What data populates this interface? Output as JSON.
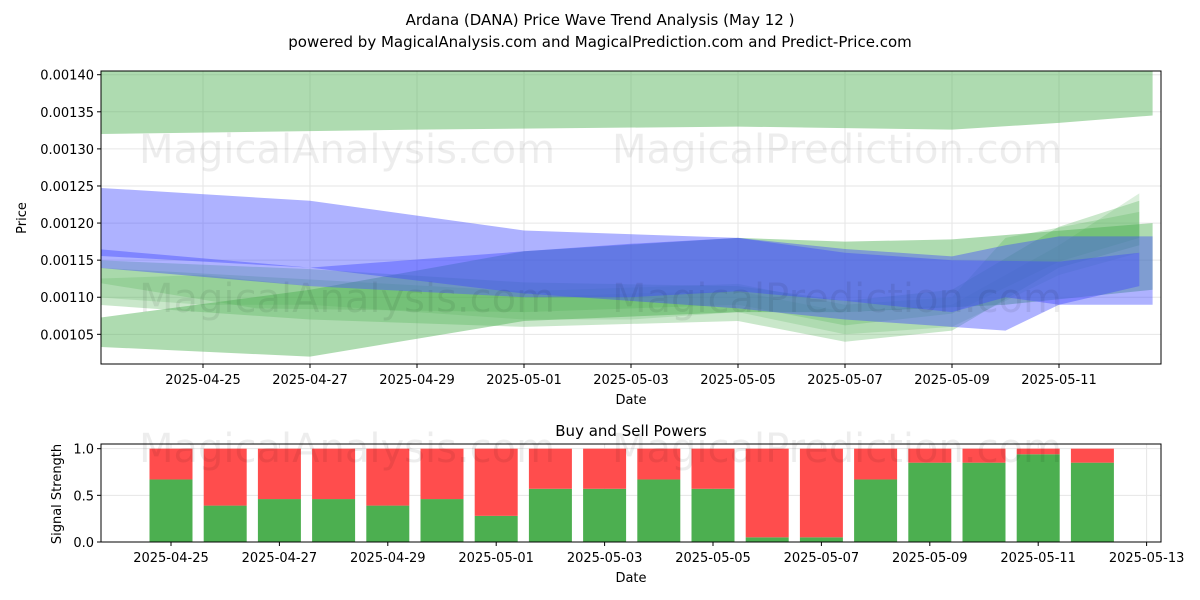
{
  "title_line1": "Ardana (DANA) Price Wave Trend Analysis (May 12 )",
  "title_line2": "powered by MagicalAnalysis.com and MagicalPrediction.com and Predict-Price.com",
  "watermarks": [
    "MagicalAnalysis.com",
    "MagicalPrediction.com"
  ],
  "colors": {
    "green_band": "#4caf50",
    "blue_band": "#3f48ff",
    "buy": "#4caf50",
    "sell": "#ff4d4d",
    "grid": "#e6e6e6"
  },
  "chart_data": [
    {
      "type": "area",
      "xlabel": "Date",
      "ylabel": "Price",
      "ylim": [
        0.00101,
        0.001405
      ],
      "xlim": [
        "2025-04-22 12:00",
        "2025-05-13 00:00"
      ],
      "grid": true,
      "x_ticks": [
        "2025-04-25",
        "2025-04-27",
        "2025-04-29",
        "2025-05-01",
        "2025-05-03",
        "2025-05-05",
        "2025-05-07",
        "2025-05-09",
        "2025-05-11"
      ],
      "y_ticks": [
        "0.00105",
        "0.00110",
        "0.00115",
        "0.00120",
        "0.00125",
        "0.00130",
        "0.00135",
        "0.00140"
      ],
      "bands": [
        {
          "color": "green",
          "opacity": 0.45,
          "upper": [
            [
              "2025-04-23",
              0.00141
            ],
            [
              "2025-05-01",
              0.00141
            ],
            [
              "2025-05-09",
              0.00141
            ],
            [
              "2025-05-12 18:00",
              0.00141
            ]
          ],
          "lower": [
            [
              "2025-04-23",
              0.00132
            ],
            [
              "2025-04-29",
              0.001326
            ],
            [
              "2025-05-05",
              0.00133
            ],
            [
              "2025-05-09",
              0.001326
            ],
            [
              "2025-05-11",
              0.001335
            ],
            [
              "2025-05-12 18:00",
              0.001345
            ]
          ]
        },
        {
          "color": "green",
          "opacity": 0.45,
          "upper": [
            [
              "2025-04-22 12:00",
              0.001067
            ],
            [
              "2025-04-27",
              0.00111
            ],
            [
              "2025-05-01",
              0.001162
            ],
            [
              "2025-05-05",
              0.00118
            ],
            [
              "2025-05-07",
              0.001175
            ],
            [
              "2025-05-09",
              0.001178
            ],
            [
              "2025-05-12 18:00",
              0.0012
            ]
          ],
          "lower": [
            [
              "2025-04-22 12:00",
              0.001035
            ],
            [
              "2025-04-27",
              0.00102
            ],
            [
              "2025-05-01",
              0.001068
            ],
            [
              "2025-05-05",
              0.00108
            ],
            [
              "2025-05-07",
              0.00108
            ],
            [
              "2025-05-10",
              0.00109
            ],
            [
              "2025-05-12 18:00",
              0.00111
            ]
          ]
        },
        {
          "color": "green",
          "opacity": 0.3,
          "upper": [
            [
              "2025-04-23",
              0.00115
            ],
            [
              "2025-04-27",
              0.001138
            ],
            [
              "2025-05-01",
              0.00112
            ],
            [
              "2025-05-05",
              0.001115
            ],
            [
              "2025-05-07",
              0.001095
            ],
            [
              "2025-05-09",
              0.00111
            ],
            [
              "2025-05-11",
              0.001195
            ],
            [
              "2025-05-12 12:00",
              0.00123
            ]
          ],
          "lower": [
            [
              "2025-04-23",
              0.00109
            ],
            [
              "2025-04-27",
              0.00107
            ],
            [
              "2025-05-01",
              0.00106
            ],
            [
              "2025-05-05",
              0.001068
            ],
            [
              "2025-05-07",
              0.00104
            ],
            [
              "2025-05-09",
              0.001055
            ],
            [
              "2025-05-11",
              0.00114
            ],
            [
              "2025-05-12 12:00",
              0.00117
            ]
          ]
        },
        {
          "color": "green",
          "opacity": 0.25,
          "upper": [
            [
              "2025-04-23",
              0.00114
            ],
            [
              "2025-04-26",
              0.001128
            ],
            [
              "2025-05-01",
              0.001108
            ],
            [
              "2025-05-05",
              0.001118
            ],
            [
              "2025-05-07",
              0.00109
            ],
            [
              "2025-05-09",
              0.0011
            ],
            [
              "2025-05-10",
              0.00118
            ],
            [
              "2025-05-12 12:00",
              0.001215
            ]
          ],
          "lower": [
            [
              "2025-04-23",
              0.00112
            ],
            [
              "2025-04-26",
              0.001085
            ],
            [
              "2025-05-01",
              0.00108
            ],
            [
              "2025-05-05",
              0.00109
            ],
            [
              "2025-05-07",
              0.001062
            ],
            [
              "2025-05-09",
              0.001078
            ],
            [
              "2025-05-11",
              0.001148
            ],
            [
              "2025-05-12 12:00",
              0.00118
            ]
          ]
        },
        {
          "color": "green",
          "opacity": 0.2,
          "upper": [
            [
              "2025-04-23",
              0.001125
            ],
            [
              "2025-04-25",
              0.00113
            ],
            [
              "2025-04-27",
              0.001115
            ],
            [
              "2025-05-01",
              0.0011
            ],
            [
              "2025-05-03",
              0.001105
            ],
            [
              "2025-05-05",
              0.001108
            ],
            [
              "2025-05-07",
              0.00108
            ],
            [
              "2025-05-09",
              0.00109
            ],
            [
              "2025-05-11",
              0.00117
            ],
            [
              "2025-05-12 12:00",
              0.00124
            ]
          ],
          "lower": [
            [
              "2025-04-23",
              0.0011
            ],
            [
              "2025-04-25",
              0.00109
            ],
            [
              "2025-04-27",
              0.00109
            ],
            [
              "2025-05-01",
              0.00107
            ],
            [
              "2025-05-03",
              0.00107
            ],
            [
              "2025-05-05",
              0.00108
            ],
            [
              "2025-05-07",
              0.00105
            ],
            [
              "2025-05-09",
              0.00106
            ],
            [
              "2025-05-11",
              0.00113
            ],
            [
              "2025-05-12 12:00",
              0.00116
            ]
          ]
        },
        {
          "color": "blue",
          "opacity": 0.42,
          "upper": [
            [
              "2025-04-22 12:00",
              0.00125
            ],
            [
              "2025-04-27",
              0.00123
            ],
            [
              "2025-05-01",
              0.00119
            ],
            [
              "2025-05-05",
              0.00118
            ],
            [
              "2025-05-07",
              0.00116
            ],
            [
              "2025-05-09",
              0.00115
            ],
            [
              "2025-05-11",
              0.001148
            ],
            [
              "2025-05-12 12:00",
              0.00116
            ]
          ],
          "lower": [
            [
              "2025-04-22 12:00",
              0.001158
            ],
            [
              "2025-04-27",
              0.00114
            ],
            [
              "2025-05-01",
              0.001105
            ],
            [
              "2025-05-05",
              0.001085
            ],
            [
              "2025-05-07",
              0.00107
            ],
            [
              "2025-05-09",
              0.00106
            ],
            [
              "2025-05-10",
              0.001055
            ],
            [
              "2025-05-11",
              0.00109
            ],
            [
              "2025-05-12 12:00",
              0.001115
            ]
          ]
        },
        {
          "color": "blue",
          "opacity": 0.42,
          "upper": [
            [
              "2025-04-23",
              0.001165
            ],
            [
              "2025-04-27",
              0.00114
            ],
            [
              "2025-05-01",
              0.001162
            ],
            [
              "2025-05-03",
              0.001172
            ],
            [
              "2025-05-05",
              0.00118
            ],
            [
              "2025-05-07",
              0.001165
            ],
            [
              "2025-05-09",
              0.001155
            ],
            [
              "2025-05-10",
              0.00117
            ],
            [
              "2025-05-11",
              0.001182
            ],
            [
              "2025-05-12 18:00",
              0.001182
            ]
          ],
          "lower": [
            [
              "2025-04-23",
              0.00114
            ],
            [
              "2025-04-27",
              0.001115
            ],
            [
              "2025-05-01",
              0.0011
            ],
            [
              "2025-05-03",
              0.0011
            ],
            [
              "2025-05-05",
              0.001108
            ],
            [
              "2025-05-07",
              0.001095
            ],
            [
              "2025-05-09",
              0.00108
            ],
            [
              "2025-05-10",
              0.0011
            ],
            [
              "2025-05-11",
              0.00109
            ],
            [
              "2025-05-12 18:00",
              0.00109
            ]
          ]
        }
      ]
    },
    {
      "type": "bar",
      "title": "Buy and Sell Powers",
      "xlabel": "Date",
      "ylabel": "Signal Strength",
      "ylim": [
        0,
        1.05
      ],
      "grid": true,
      "x_ticks": [
        "2025-04-25",
        "2025-04-27",
        "2025-04-29",
        "2025-05-01",
        "2025-05-03",
        "2025-05-05",
        "2025-05-07",
        "2025-05-09",
        "2025-05-11",
        "2025-05-13"
      ],
      "y_ticks": [
        "0.0",
        "0.5",
        "1.0"
      ],
      "categories": [
        "2025-04-25",
        "2025-04-26",
        "2025-04-27",
        "2025-04-28",
        "2025-04-29",
        "2025-04-30",
        "2025-05-01",
        "2025-05-02",
        "2025-05-03",
        "2025-05-04",
        "2025-05-05",
        "2025-05-06",
        "2025-05-07",
        "2025-05-08",
        "2025-05-09",
        "2025-05-10",
        "2025-05-11",
        "2025-05-12"
      ],
      "series": [
        {
          "name": "Buy",
          "values": [
            0.67,
            0.39,
            0.46,
            0.46,
            0.39,
            0.46,
            0.28,
            0.57,
            0.57,
            0.67,
            0.57,
            0.05,
            0.05,
            0.67,
            0.85,
            0.85,
            0.94,
            0.85
          ]
        },
        {
          "name": "Sell",
          "values": [
            0.33,
            0.61,
            0.54,
            0.54,
            0.61,
            0.54,
            0.72,
            0.43,
            0.43,
            0.33,
            0.43,
            0.95,
            0.95,
            0.33,
            0.15,
            0.15,
            0.06,
            0.15
          ]
        }
      ]
    }
  ]
}
